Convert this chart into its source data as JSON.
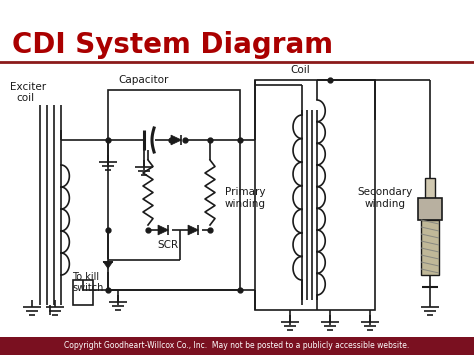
{
  "title": "CDI System Diagram",
  "title_color": "#aa0000",
  "title_fontsize": 20,
  "title_fontweight": "bold",
  "bg_color": "#ffffff",
  "diagram_color": "#1a1a1a",
  "footer_bg": "#7a1020",
  "footer_text": "Copyright Goodheart-Willcox Co., Inc.  May not be posted to a publicly accessible website.",
  "footer_color": "#ffffff",
  "footer_fontsize": 5.5,
  "red_line_color": "#8b1a1a",
  "labels": {
    "exciter_coil_1": "Exciter",
    "exciter_coil_2": "coil",
    "capacitor": "Capacitor",
    "coil": "Coil",
    "primary_winding_1": "Primary",
    "primary_winding_2": "winding",
    "secondary_winding_1": "Secondary",
    "secondary_winding_2": "winding",
    "scr": "SCR",
    "to_kill_switch_1": "To kill",
    "to_kill_switch_2": "switch"
  }
}
